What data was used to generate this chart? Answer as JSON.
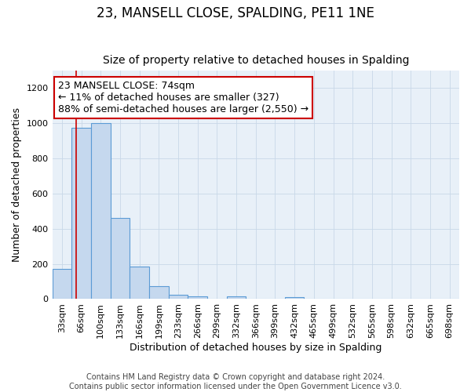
{
  "title": "23, MANSELL CLOSE, SPALDING, PE11 1NE",
  "subtitle": "Size of property relative to detached houses in Spalding",
  "xlabel": "Distribution of detached houses by size in Spalding",
  "ylabel": "Number of detached properties",
  "footer_line1": "Contains HM Land Registry data © Crown copyright and database right 2024.",
  "footer_line2": "Contains public sector information licensed under the Open Government Licence v3.0.",
  "bin_labels": [
    "33sqm",
    "66sqm",
    "100sqm",
    "133sqm",
    "166sqm",
    "199sqm",
    "233sqm",
    "266sqm",
    "299sqm",
    "332sqm",
    "366sqm",
    "399sqm",
    "432sqm",
    "465sqm",
    "499sqm",
    "532sqm",
    "565sqm",
    "598sqm",
    "632sqm",
    "665sqm",
    "698sqm"
  ],
  "bar_values": [
    170,
    975,
    1000,
    460,
    185,
    75,
    25,
    15,
    0,
    15,
    0,
    0,
    10,
    0,
    0,
    0,
    0,
    0,
    0,
    0,
    0
  ],
  "bar_color": "#c5d8ee",
  "bar_edge_color": "#5b9bd5",
  "annotation_text": "23 MANSELL CLOSE: 74sqm\n← 11% of detached houses are smaller (327)\n88% of semi-detached houses are larger (2,550) →",
  "annotation_box_facecolor": "#ffffff",
  "annotation_box_edgecolor": "#cc0000",
  "vline_color": "#cc0000",
  "vline_x": 1.235,
  "ylim": [
    0,
    1300
  ],
  "yticks": [
    0,
    200,
    400,
    600,
    800,
    1000,
    1200
  ],
  "title_fontsize": 12,
  "subtitle_fontsize": 10,
  "axis_label_fontsize": 9,
  "tick_fontsize": 8,
  "annotation_fontsize": 9,
  "footer_fontsize": 7,
  "grid_color": "#c8d8e8",
  "background_color": "#ffffff",
  "ax_background_color": "#e8f0f8"
}
